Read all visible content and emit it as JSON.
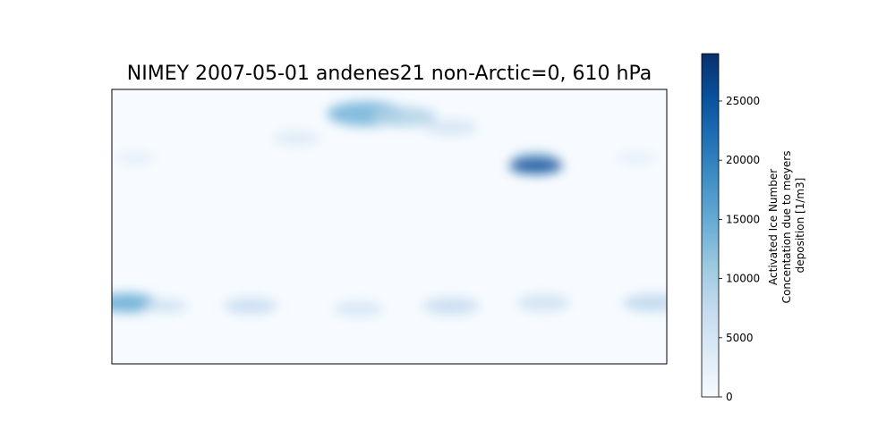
{
  "chart_data": {
    "type": "heatmap",
    "title": "NIMEY 2007-05-01 andenes21 non-Arctic=0, 610 hPa",
    "xlabel": "",
    "ylabel": "",
    "colormap": "Blues",
    "colorbar": {
      "label_lines": [
        "Activated Ice Number",
        "Concentation due to meyers",
        "deposition [1/m3]"
      ],
      "range": [
        0,
        29000
      ],
      "ticks": [
        0,
        5000,
        10000,
        15000,
        20000,
        25000
      ],
      "tick_labels": [
        "0",
        "5000",
        "10000",
        "15000",
        "20000",
        "25000"
      ]
    },
    "grid": false,
    "field_blobs": [
      {
        "lon": -15,
        "lat": 74,
        "value": 14000
      },
      {
        "lon": 10,
        "lat": 72,
        "value": 9000
      },
      {
        "lon": 40,
        "lat": 65,
        "value": 5000
      },
      {
        "lon": -60,
        "lat": 58,
        "value": 4000
      },
      {
        "lon": 95,
        "lat": 44,
        "value": 12000
      },
      {
        "lon": 95,
        "lat": 40,
        "value": 25000
      },
      {
        "lon": -165,
        "lat": 45,
        "value": 3000
      },
      {
        "lon": 160,
        "lat": 45,
        "value": 3000
      },
      {
        "lon": -170,
        "lat": -50,
        "value": 15000
      },
      {
        "lon": -145,
        "lat": -52,
        "value": 6000
      },
      {
        "lon": -90,
        "lat": -52,
        "value": 7000
      },
      {
        "lon": -20,
        "lat": -54,
        "value": 5000
      },
      {
        "lon": 40,
        "lat": -52,
        "value": 7000
      },
      {
        "lon": 100,
        "lat": -50,
        "value": 6000
      },
      {
        "lon": 170,
        "lat": -50,
        "value": 8000
      }
    ]
  }
}
